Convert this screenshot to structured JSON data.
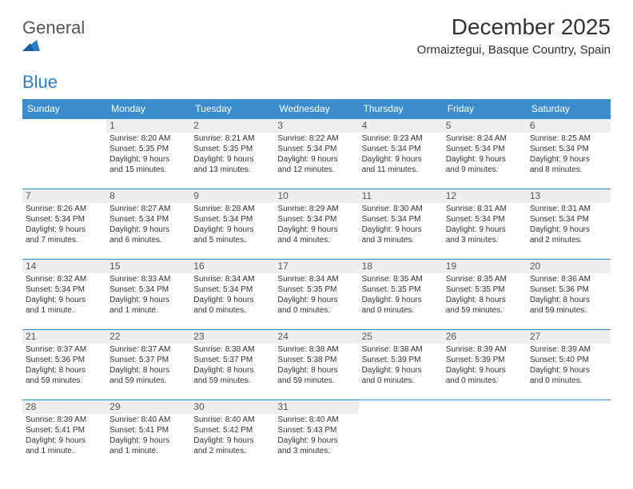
{
  "brand": {
    "name1": "General",
    "name2": "Blue"
  },
  "title": "December 2025",
  "location": "Ormaiztegui, Basque Country, Spain",
  "colors": {
    "header_bg": "#3b8ccc",
    "header_text": "#ffffff",
    "cell_border": "#3b8ccc",
    "daynum_bg": "#eeeeee",
    "body_text": "#333333",
    "brand_gray": "#555555",
    "brand_blue": "#2d7dc8"
  },
  "typography": {
    "title_fontsize": 28,
    "location_fontsize": 15,
    "dayheader_fontsize": 12,
    "daynum_fontsize": 12,
    "cell_fontsize": 10,
    "font_family": "Arial"
  },
  "day_headers": [
    "Sunday",
    "Monday",
    "Tuesday",
    "Wednesday",
    "Thursday",
    "Friday",
    "Saturday"
  ],
  "weeks": [
    [
      {
        "empty": true
      },
      {
        "n": "1",
        "sr": "Sunrise: 8:20 AM",
        "ss": "Sunset: 5:35 PM",
        "d1": "Daylight: 9 hours",
        "d2": "and 15 minutes."
      },
      {
        "n": "2",
        "sr": "Sunrise: 8:21 AM",
        "ss": "Sunset: 5:35 PM",
        "d1": "Daylight: 9 hours",
        "d2": "and 13 minutes."
      },
      {
        "n": "3",
        "sr": "Sunrise: 8:22 AM",
        "ss": "Sunset: 5:34 PM",
        "d1": "Daylight: 9 hours",
        "d2": "and 12 minutes."
      },
      {
        "n": "4",
        "sr": "Sunrise: 8:23 AM",
        "ss": "Sunset: 5:34 PM",
        "d1": "Daylight: 9 hours",
        "d2": "and 11 minutes."
      },
      {
        "n": "5",
        "sr": "Sunrise: 8:24 AM",
        "ss": "Sunset: 5:34 PM",
        "d1": "Daylight: 9 hours",
        "d2": "and 9 minutes."
      },
      {
        "n": "6",
        "sr": "Sunrise: 8:25 AM",
        "ss": "Sunset: 5:34 PM",
        "d1": "Daylight: 9 hours",
        "d2": "and 8 minutes."
      }
    ],
    [
      {
        "n": "7",
        "sr": "Sunrise: 8:26 AM",
        "ss": "Sunset: 5:34 PM",
        "d1": "Daylight: 9 hours",
        "d2": "and 7 minutes."
      },
      {
        "n": "8",
        "sr": "Sunrise: 8:27 AM",
        "ss": "Sunset: 5:34 PM",
        "d1": "Daylight: 9 hours",
        "d2": "and 6 minutes."
      },
      {
        "n": "9",
        "sr": "Sunrise: 8:28 AM",
        "ss": "Sunset: 5:34 PM",
        "d1": "Daylight: 9 hours",
        "d2": "and 5 minutes."
      },
      {
        "n": "10",
        "sr": "Sunrise: 8:29 AM",
        "ss": "Sunset: 5:34 PM",
        "d1": "Daylight: 9 hours",
        "d2": "and 4 minutes."
      },
      {
        "n": "11",
        "sr": "Sunrise: 8:30 AM",
        "ss": "Sunset: 5:34 PM",
        "d1": "Daylight: 9 hours",
        "d2": "and 3 minutes."
      },
      {
        "n": "12",
        "sr": "Sunrise: 8:31 AM",
        "ss": "Sunset: 5:34 PM",
        "d1": "Daylight: 9 hours",
        "d2": "and 3 minutes."
      },
      {
        "n": "13",
        "sr": "Sunrise: 8:31 AM",
        "ss": "Sunset: 5:34 PM",
        "d1": "Daylight: 9 hours",
        "d2": "and 2 minutes."
      }
    ],
    [
      {
        "n": "14",
        "sr": "Sunrise: 8:32 AM",
        "ss": "Sunset: 5:34 PM",
        "d1": "Daylight: 9 hours",
        "d2": "and 1 minute."
      },
      {
        "n": "15",
        "sr": "Sunrise: 8:33 AM",
        "ss": "Sunset: 5:34 PM",
        "d1": "Daylight: 9 hours",
        "d2": "and 1 minute."
      },
      {
        "n": "16",
        "sr": "Sunrise: 8:34 AM",
        "ss": "Sunset: 5:34 PM",
        "d1": "Daylight: 9 hours",
        "d2": "and 0 minutes."
      },
      {
        "n": "17",
        "sr": "Sunrise: 8:34 AM",
        "ss": "Sunset: 5:35 PM",
        "d1": "Daylight: 9 hours",
        "d2": "and 0 minutes."
      },
      {
        "n": "18",
        "sr": "Sunrise: 8:35 AM",
        "ss": "Sunset: 5:35 PM",
        "d1": "Daylight: 9 hours",
        "d2": "and 0 minutes."
      },
      {
        "n": "19",
        "sr": "Sunrise: 8:35 AM",
        "ss": "Sunset: 5:35 PM",
        "d1": "Daylight: 8 hours",
        "d2": "and 59 minutes."
      },
      {
        "n": "20",
        "sr": "Sunrise: 8:36 AM",
        "ss": "Sunset: 5:36 PM",
        "d1": "Daylight: 8 hours",
        "d2": "and 59 minutes."
      }
    ],
    [
      {
        "n": "21",
        "sr": "Sunrise: 8:37 AM",
        "ss": "Sunset: 5:36 PM",
        "d1": "Daylight: 8 hours",
        "d2": "and 59 minutes."
      },
      {
        "n": "22",
        "sr": "Sunrise: 8:37 AM",
        "ss": "Sunset: 5:37 PM",
        "d1": "Daylight: 8 hours",
        "d2": "and 59 minutes."
      },
      {
        "n": "23",
        "sr": "Sunrise: 8:38 AM",
        "ss": "Sunset: 5:37 PM",
        "d1": "Daylight: 8 hours",
        "d2": "and 59 minutes."
      },
      {
        "n": "24",
        "sr": "Sunrise: 8:38 AM",
        "ss": "Sunset: 5:38 PM",
        "d1": "Daylight: 8 hours",
        "d2": "and 59 minutes."
      },
      {
        "n": "25",
        "sr": "Sunrise: 8:38 AM",
        "ss": "Sunset: 5:39 PM",
        "d1": "Daylight: 9 hours",
        "d2": "and 0 minutes."
      },
      {
        "n": "26",
        "sr": "Sunrise: 8:39 AM",
        "ss": "Sunset: 5:39 PM",
        "d1": "Daylight: 9 hours",
        "d2": "and 0 minutes."
      },
      {
        "n": "27",
        "sr": "Sunrise: 8:39 AM",
        "ss": "Sunset: 5:40 PM",
        "d1": "Daylight: 9 hours",
        "d2": "and 0 minutes."
      }
    ],
    [
      {
        "n": "28",
        "sr": "Sunrise: 8:39 AM",
        "ss": "Sunset: 5:41 PM",
        "d1": "Daylight: 9 hours",
        "d2": "and 1 minute."
      },
      {
        "n": "29",
        "sr": "Sunrise: 8:40 AM",
        "ss": "Sunset: 5:41 PM",
        "d1": "Daylight: 9 hours",
        "d2": "and 1 minute."
      },
      {
        "n": "30",
        "sr": "Sunrise: 8:40 AM",
        "ss": "Sunset: 5:42 PM",
        "d1": "Daylight: 9 hours",
        "d2": "and 2 minutes."
      },
      {
        "n": "31",
        "sr": "Sunrise: 8:40 AM",
        "ss": "Sunset: 5:43 PM",
        "d1": "Daylight: 9 hours",
        "d2": "and 3 minutes."
      },
      {
        "empty": true
      },
      {
        "empty": true
      },
      {
        "empty": true
      }
    ]
  ]
}
